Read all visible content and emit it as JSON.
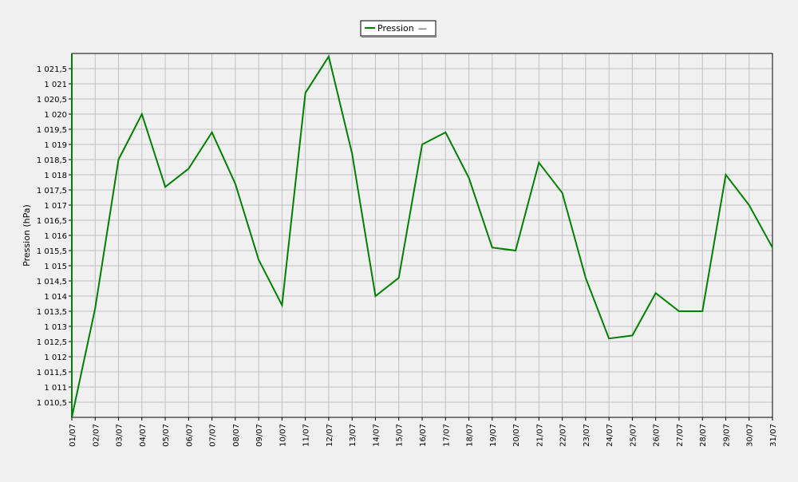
{
  "chart_data": {
    "type": "line",
    "title": "",
    "xlabel": "",
    "ylabel": "Pression (hPa)",
    "ylim": [
      1010,
      1022
    ],
    "y_ticks": [
      {
        "value": 1010.5,
        "label": "1 010,5"
      },
      {
        "value": 1011,
        "label": "1 011"
      },
      {
        "value": 1011.5,
        "label": "1 011,5"
      },
      {
        "value": 1012,
        "label": "1 012"
      },
      {
        "value": 1012.5,
        "label": "1 012,5"
      },
      {
        "value": 1013,
        "label": "1 013"
      },
      {
        "value": 1013.5,
        "label": "1 013,5"
      },
      {
        "value": 1014,
        "label": "1 014"
      },
      {
        "value": 1014.5,
        "label": "1 014,5"
      },
      {
        "value": 1015,
        "label": "1 015"
      },
      {
        "value": 1015.5,
        "label": "1 015,5"
      },
      {
        "value": 1016,
        "label": "1 016"
      },
      {
        "value": 1016.5,
        "label": "1 016,5"
      },
      {
        "value": 1017,
        "label": "1 017"
      },
      {
        "value": 1017.5,
        "label": "1 017,5"
      },
      {
        "value": 1018,
        "label": "1 018"
      },
      {
        "value": 1018.5,
        "label": "1 018,5"
      },
      {
        "value": 1019,
        "label": "1 019"
      },
      {
        "value": 1019.5,
        "label": "1 019,5"
      },
      {
        "value": 1020,
        "label": "1 020"
      },
      {
        "value": 1020.5,
        "label": "1 020,5"
      },
      {
        "value": 1021,
        "label": "1 021"
      },
      {
        "value": 1021.5,
        "label": "1 021,5"
      }
    ],
    "categories": [
      "01/07",
      "02/07",
      "03/07",
      "04/07",
      "05/07",
      "06/07",
      "07/07",
      "08/07",
      "09/07",
      "10/07",
      "11/07",
      "12/07",
      "13/07",
      "14/07",
      "15/07",
      "16/07",
      "17/07",
      "18/07",
      "19/07",
      "20/07",
      "21/07",
      "22/07",
      "23/07",
      "24/07",
      "25/07",
      "26/07",
      "27/07",
      "28/07",
      "29/07",
      "30/07",
      "31/07"
    ],
    "series": [
      {
        "name": "Pression",
        "color": "#008000",
        "values": [
          1010.0,
          1013.6,
          1018.5,
          1020.0,
          1017.6,
          1018.2,
          1019.4,
          1017.7,
          1015.2,
          1013.7,
          1020.7,
          1021.9,
          1018.7,
          1014.0,
          1014.6,
          1019.0,
          1019.4,
          1017.9,
          1015.6,
          1015.5,
          1018.4,
          1017.4,
          1014.6,
          1012.6,
          1012.7,
          1014.1,
          1013.5,
          1013.5,
          1018.0,
          1017.0,
          1015.6
        ]
      }
    ],
    "grid": true,
    "legend": {
      "position": "top-center",
      "series_label": "Pression",
      "marker_symbol": "—"
    },
    "colors": {
      "background": "#f0f0f0",
      "plot_background": "#f0f0f0",
      "grid": "#c0c0c0",
      "line": "#008000"
    }
  }
}
